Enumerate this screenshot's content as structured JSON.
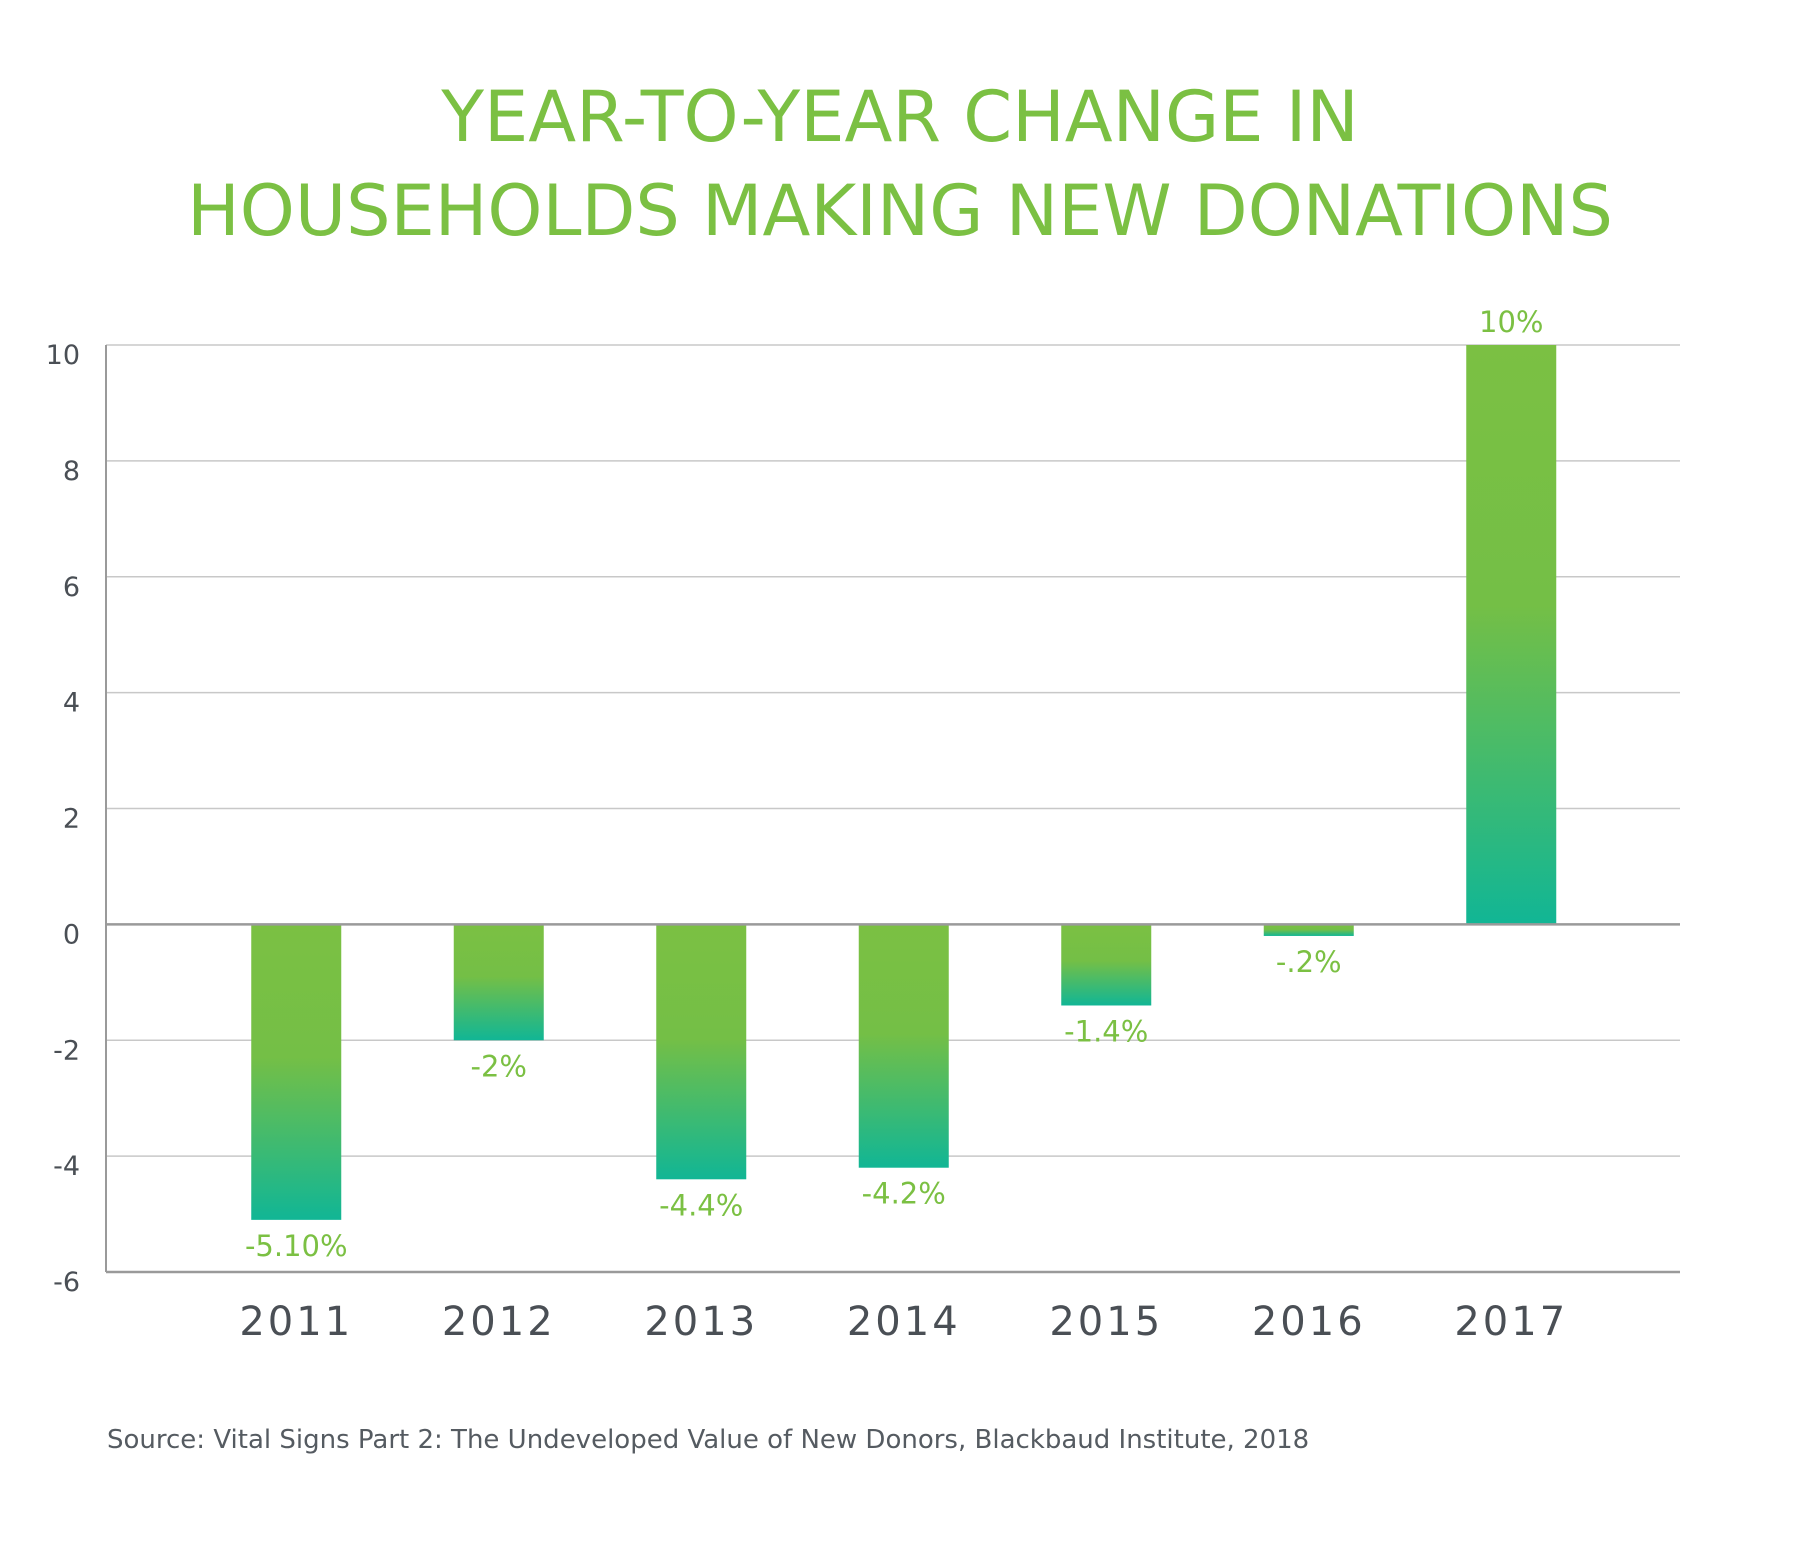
{
  "chart_data": {
    "type": "bar",
    "title_lines": [
      "YEAR-TO-YEAR CHANGE IN",
      "HOUSEHOLDS MAKING NEW DONATIONS"
    ],
    "categories": [
      "2011",
      "2012",
      "2013",
      "2014",
      "2015",
      "2016",
      "2017"
    ],
    "values": [
      -5.1,
      -2,
      -4.4,
      -4.2,
      -1.4,
      -0.2,
      10
    ],
    "data_labels": [
      "-5.10%",
      "-2%",
      "-4.4%",
      "-4.2%",
      "-1.4%",
      "-.2%",
      "10%"
    ],
    "ylim": [
      -6,
      10
    ],
    "yticks": [
      10,
      8,
      6,
      4,
      2,
      0,
      -2,
      -4,
      -6
    ],
    "ytick_labels": [
      "10",
      "8",
      "6",
      "4",
      "2",
      "0",
      "-2",
      "-4",
      "-6"
    ],
    "grid": true,
    "legend": "none",
    "source": "Source: Vital Signs Part 2: The Undeveloped Value of New Donors, Blackbaud Institute, 2018"
  },
  "colors": {
    "title": "#7bc043",
    "bar_top": "#7bc043",
    "bar_bottom": "#11b695",
    "data_label": "#7bc043",
    "tick_label": "#4a4f55",
    "grid": "#c8c8c8",
    "axis": "#9a9a9a"
  }
}
